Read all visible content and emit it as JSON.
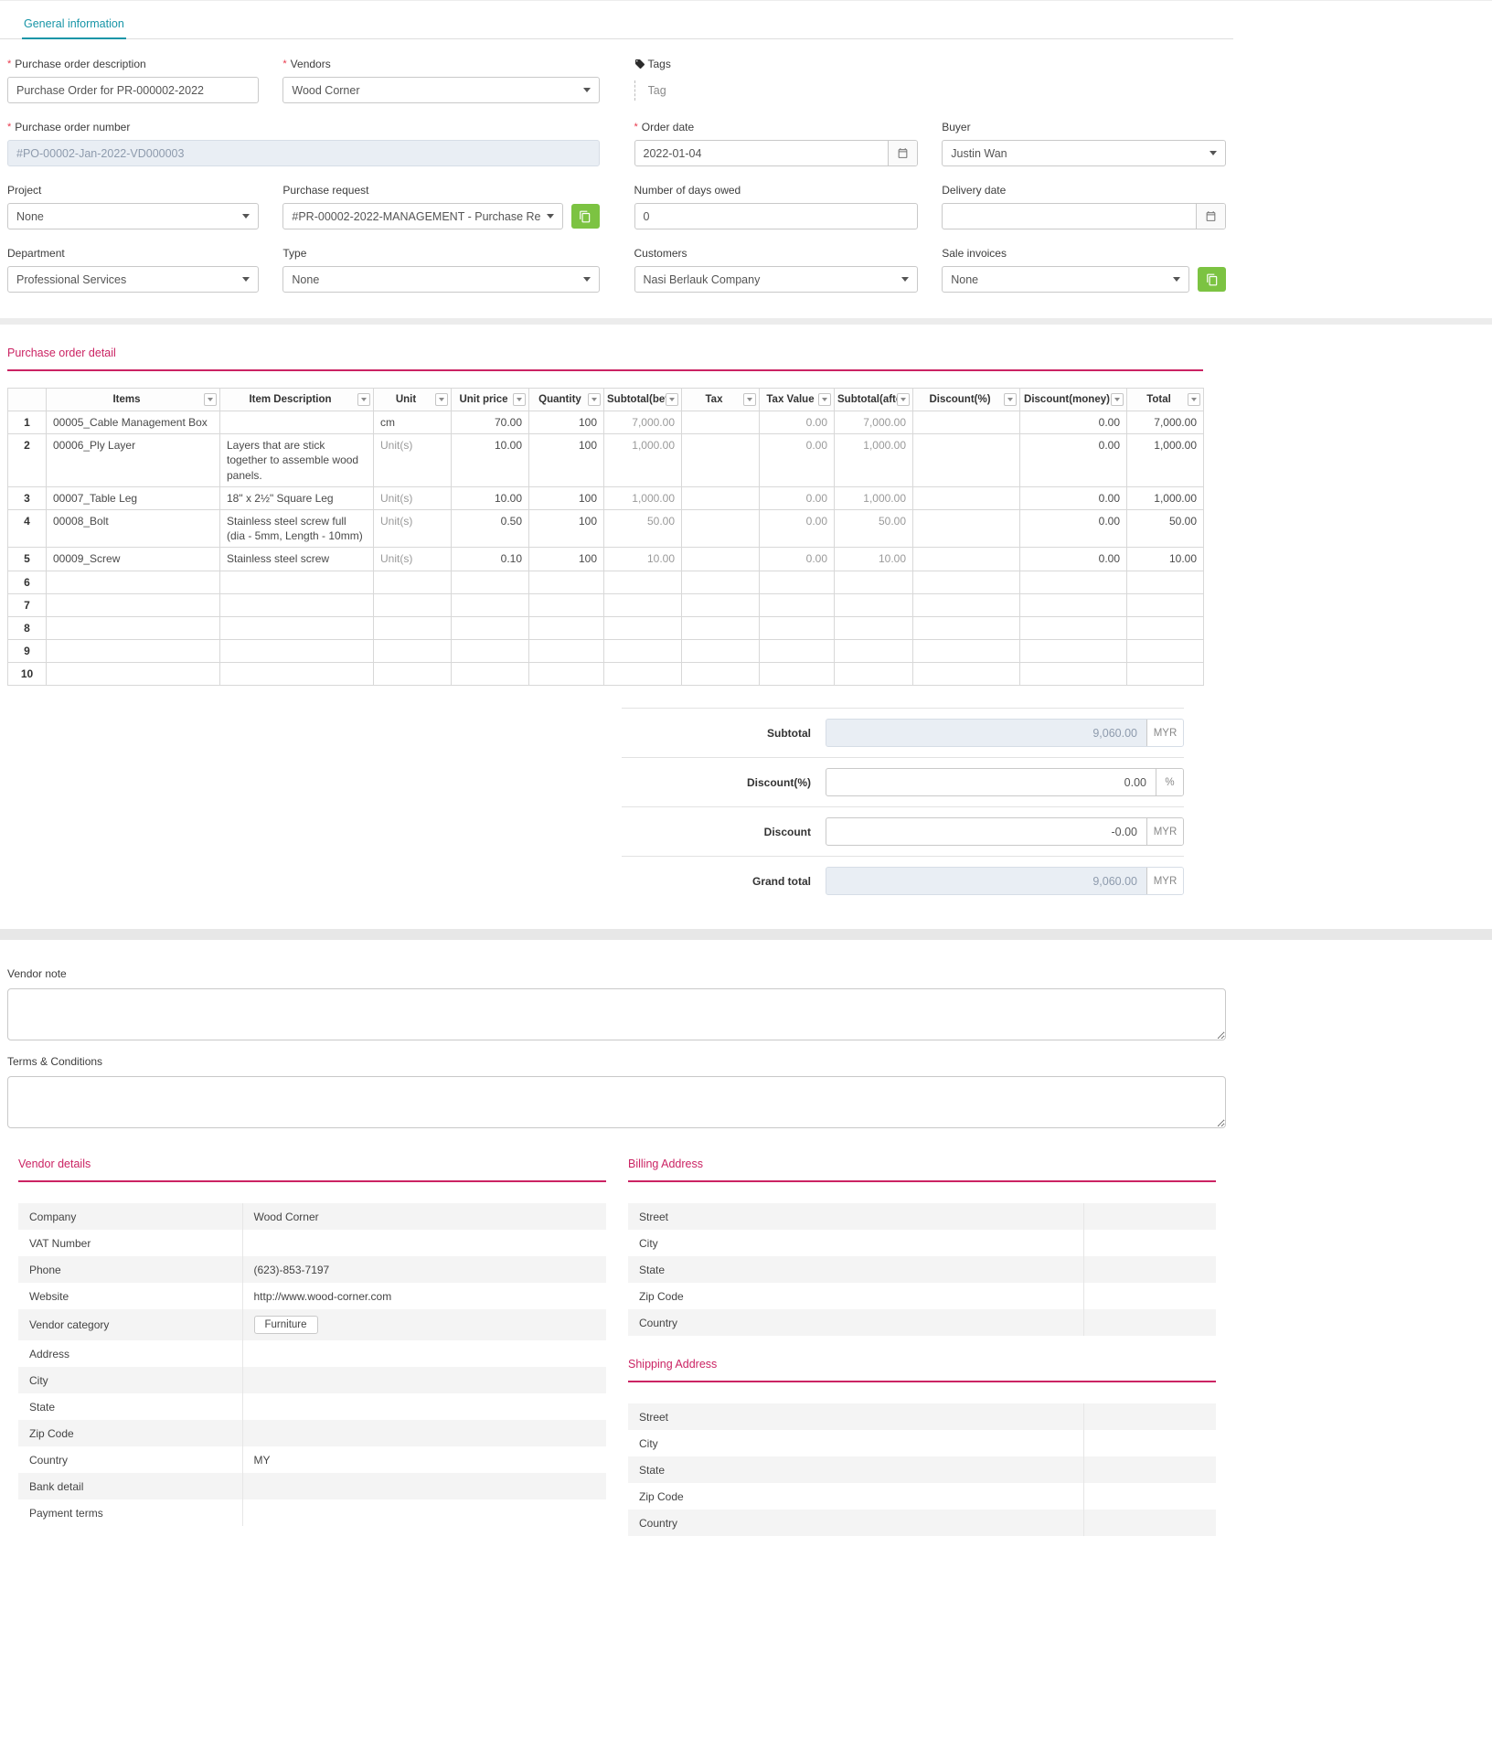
{
  "colors": {
    "accent_teal": "#1795a7",
    "accent_pink": "#cb2363",
    "action_green": "#7cc342",
    "required_red": "#e8374a",
    "disabled_bg": "#e9eef4",
    "disabled_text": "#8e9bad"
  },
  "tabbar": {
    "general_tab": "General information"
  },
  "general": {
    "po_description": {
      "label": "Purchase order description",
      "value": "Purchase Order for PR-000002-2022"
    },
    "vendors": {
      "label": "Vendors",
      "value": "Wood Corner"
    },
    "tags": {
      "label": "Tags",
      "placeholder": "Tag"
    },
    "po_number": {
      "label": "Purchase order number",
      "value": "#PO-00002-Jan-2022-VD000003"
    },
    "order_date": {
      "label": "Order date",
      "value": "2022-01-04"
    },
    "buyer": {
      "label": "Buyer",
      "value": "Justin Wan"
    },
    "project": {
      "label": "Project",
      "value": "None"
    },
    "purchase_request": {
      "label": "Purchase request",
      "value": "#PR-00002-2022-MANAGEMENT - Purchase Re"
    },
    "days_owed": {
      "label": "Number of days owed",
      "value": "0"
    },
    "delivery_date": {
      "label": "Delivery date",
      "value": ""
    },
    "department": {
      "label": "Department",
      "value": "Professional Services"
    },
    "type": {
      "label": "Type",
      "value": "None"
    },
    "customers": {
      "label": "Customers",
      "value": "Nasi Berlauk Company"
    },
    "sale_invoices": {
      "label": "Sale invoices",
      "value": "None"
    }
  },
  "detail": {
    "title": "Purchase order detail",
    "columns": [
      "Items",
      "Item Description",
      "Unit",
      "Unit price",
      "Quantity",
      "Subtotal(before",
      "Tax",
      "Tax Value",
      "Subtotal(after ta",
      "Discount(%)",
      "Discount(money)",
      "Total"
    ],
    "rows": [
      {
        "n": "1",
        "items": "00005_Cable Management Box",
        "desc": "",
        "unit": "cm",
        "unit_price": "70.00",
        "qty": "100",
        "subtotal_before": "7,000.00",
        "tax": "",
        "tax_value": "0.00",
        "subtotal_after": "7,000.00",
        "discount_pct": "",
        "discount_money": "0.00",
        "total": "7,000.00"
      },
      {
        "n": "2",
        "items": "00006_Ply Layer",
        "desc": "Layers that are stick together to assemble wood panels.",
        "unit": "Unit(s)",
        "unit_price": "10.00",
        "qty": "100",
        "subtotal_before": "1,000.00",
        "tax": "",
        "tax_value": "0.00",
        "subtotal_after": "1,000.00",
        "discount_pct": "",
        "discount_money": "0.00",
        "total": "1,000.00"
      },
      {
        "n": "3",
        "items": "00007_Table Leg",
        "desc": "18\" x 2½\" Square Leg",
        "unit": "Unit(s)",
        "unit_price": "10.00",
        "qty": "100",
        "subtotal_before": "1,000.00",
        "tax": "",
        "tax_value": "0.00",
        "subtotal_after": "1,000.00",
        "discount_pct": "",
        "discount_money": "0.00",
        "total": "1,000.00"
      },
      {
        "n": "4",
        "items": "00008_Bolt",
        "desc": "Stainless steel screw full (dia - 5mm, Length - 10mm)",
        "unit": "Unit(s)",
        "unit_price": "0.50",
        "qty": "100",
        "subtotal_before": "50.00",
        "tax": "",
        "tax_value": "0.00",
        "subtotal_after": "50.00",
        "discount_pct": "",
        "discount_money": "0.00",
        "total": "50.00"
      },
      {
        "n": "5",
        "items": "00009_Screw",
        "desc": "Stainless steel screw",
        "unit": "Unit(s)",
        "unit_price": "0.10",
        "qty": "100",
        "subtotal_before": "10.00",
        "tax": "",
        "tax_value": "0.00",
        "subtotal_after": "10.00",
        "discount_pct": "",
        "discount_money": "0.00",
        "total": "10.00"
      },
      {
        "n": "6"
      },
      {
        "n": "7"
      },
      {
        "n": "8"
      },
      {
        "n": "9"
      },
      {
        "n": "10"
      }
    ]
  },
  "totals": {
    "subtotal": {
      "label": "Subtotal",
      "value": "9,060.00",
      "currency": "MYR"
    },
    "discount_pct": {
      "label": "Discount(%)",
      "value": "0.00",
      "suffix": "%"
    },
    "discount": {
      "label": "Discount",
      "value": "-0.00",
      "currency": "MYR"
    },
    "grand_total": {
      "label": "Grand total",
      "value": "9,060.00",
      "currency": "MYR"
    }
  },
  "notes": {
    "vendor_note_label": "Vendor note",
    "terms_label": "Terms & Conditions"
  },
  "vendor_details": {
    "title": "Vendor details",
    "rows": [
      {
        "label": "Company",
        "value": "Wood Corner"
      },
      {
        "label": "VAT Number",
        "value": ""
      },
      {
        "label": "Phone",
        "value": "(623)-853-7197"
      },
      {
        "label": "Website",
        "value": "http://www.wood-corner.com"
      },
      {
        "label": "Vendor category",
        "value": "Furniture",
        "badge": true
      },
      {
        "label": "Address",
        "value": ""
      },
      {
        "label": "City",
        "value": ""
      },
      {
        "label": "State",
        "value": ""
      },
      {
        "label": "Zip Code",
        "value": ""
      },
      {
        "label": "Country",
        "value": "MY"
      },
      {
        "label": "Bank detail",
        "value": ""
      },
      {
        "label": "Payment terms",
        "value": ""
      }
    ]
  },
  "billing_address": {
    "title": "Billing Address",
    "rows": [
      "Street",
      "City",
      "State",
      "Zip Code",
      "Country"
    ]
  },
  "shipping_address": {
    "title": "Shipping Address",
    "rows": [
      "Street",
      "City",
      "State",
      "Zip Code",
      "Country"
    ]
  }
}
